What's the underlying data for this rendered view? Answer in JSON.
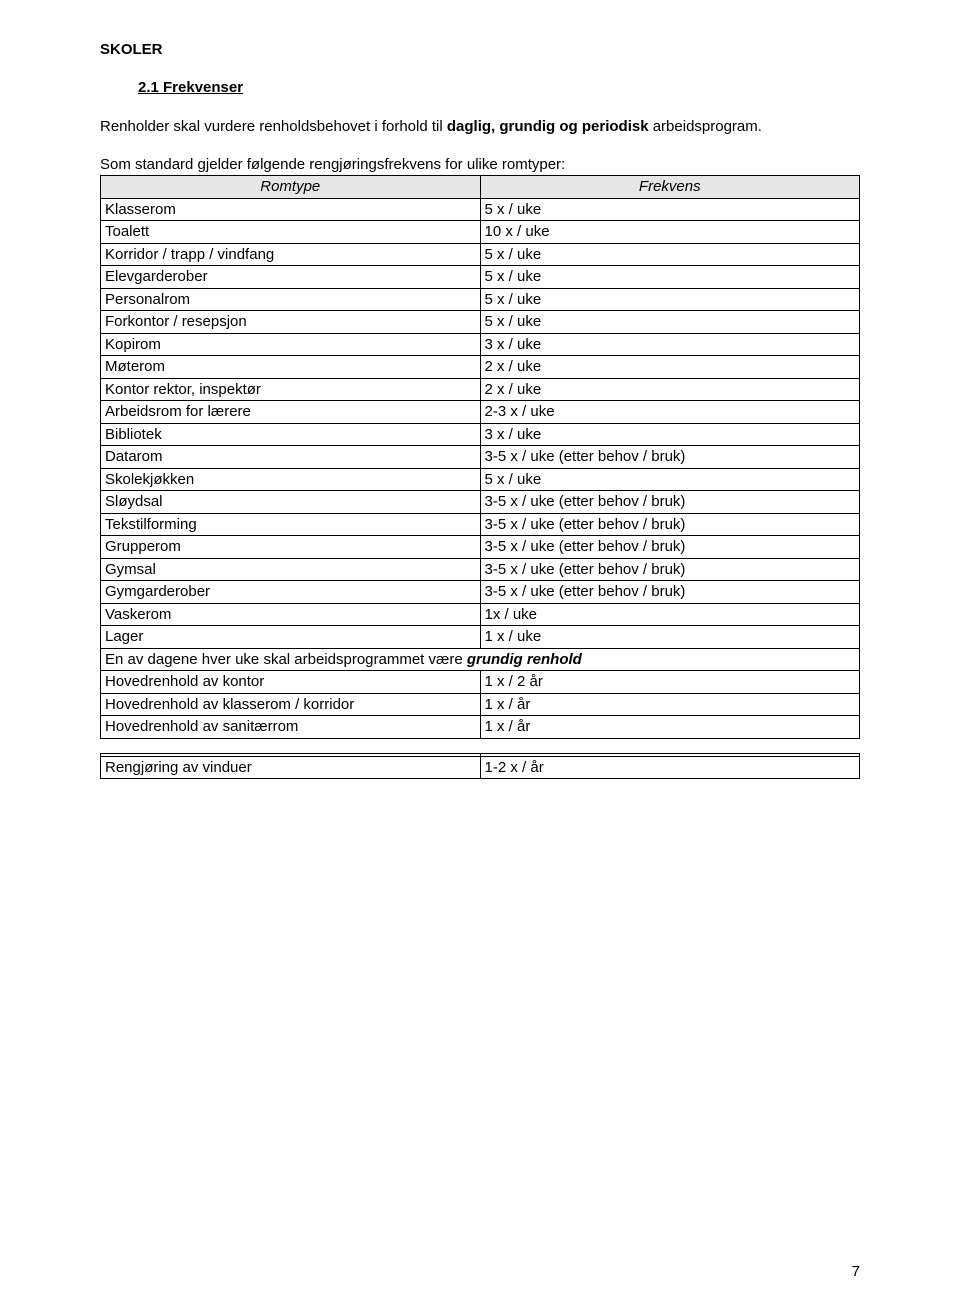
{
  "heading1": "SKOLER",
  "heading2": "2.1  Frekvenser",
  "para1_a": "Renholder skal vurdere renholdsbehovet i forhold til ",
  "para1_bold": "daglig, grundig og periodisk",
  "para1_b": " arbeidsprogram.",
  "lead_in": "Som standard gjelder følgende rengjøringsfrekvens for ulike romtyper:",
  "table_header": {
    "c1": "Romtype",
    "c2": "Frekvens"
  },
  "rows": [
    {
      "c1": "Klasserom",
      "c2": "5 x / uke"
    },
    {
      "c1": "Toalett",
      "c2": "10 x / uke"
    },
    {
      "c1": "Korridor / trapp / vindfang",
      "c2": "5 x / uke"
    },
    {
      "c1": "Elevgarderober",
      "c2": "5 x / uke"
    },
    {
      "c1": "Personalrom",
      "c2": "5 x / uke"
    },
    {
      "c1": "Forkontor / resepsjon",
      "c2": "5 x / uke"
    },
    {
      "c1": "Kopirom",
      "c2": "3 x / uke"
    },
    {
      "c1": "Møterom",
      "c2": "2 x / uke"
    },
    {
      "c1": "Kontor rektor, inspektør",
      "c2": "2 x / uke"
    },
    {
      "c1": "Arbeidsrom for lærere",
      "c2": "2-3 x / uke"
    },
    {
      "c1": "Bibliotek",
      "c2": "3 x / uke"
    },
    {
      "c1": "Datarom",
      "c2": "3-5 x / uke (etter behov / bruk)"
    },
    {
      "c1": "Skolekjøkken",
      "c2": "5 x / uke"
    },
    {
      "c1": "Sløydsal",
      "c2": "3-5 x / uke (etter behov / bruk)"
    },
    {
      "c1": "Tekstilforming",
      "c2": "3-5 x / uke (etter behov / bruk)"
    },
    {
      "c1": "Grupperom",
      "c2": "3-5 x / uke (etter behov / bruk)"
    },
    {
      "c1": "Gymsal",
      "c2": "3-5 x / uke (etter behov / bruk)"
    },
    {
      "c1": "Gymgarderober",
      "c2": "3-5 x / uke (etter behov / bruk)"
    },
    {
      "c1": "Vaskerom",
      "c2": "1x / uke"
    },
    {
      "c1": "Lager",
      "c2": "1 x / uke"
    }
  ],
  "merged_a": "En av dagene hver uke skal arbeidsprogrammet være ",
  "merged_bold": "grundig renhold",
  "rows2": [
    {
      "c1": "Hovedrenhold av kontor",
      "c2": "1 x / 2 år"
    },
    {
      "c1": "Hovedrenhold av klasserom / korridor",
      "c2": "1 x / år"
    },
    {
      "c1": "Hovedrenhold av sanitærrom",
      "c2": "1 x / år"
    }
  ],
  "rows3": [
    {
      "c1": "Rengjøring av vinduer",
      "c2": "1-2 x / år"
    }
  ],
  "page_num": "7",
  "colors": {
    "header_bg": "#e6e6e6",
    "border": "#000000",
    "text": "#000000",
    "background": "#ffffff"
  },
  "col_widths": {
    "c1": "50%",
    "c2": "50%"
  }
}
